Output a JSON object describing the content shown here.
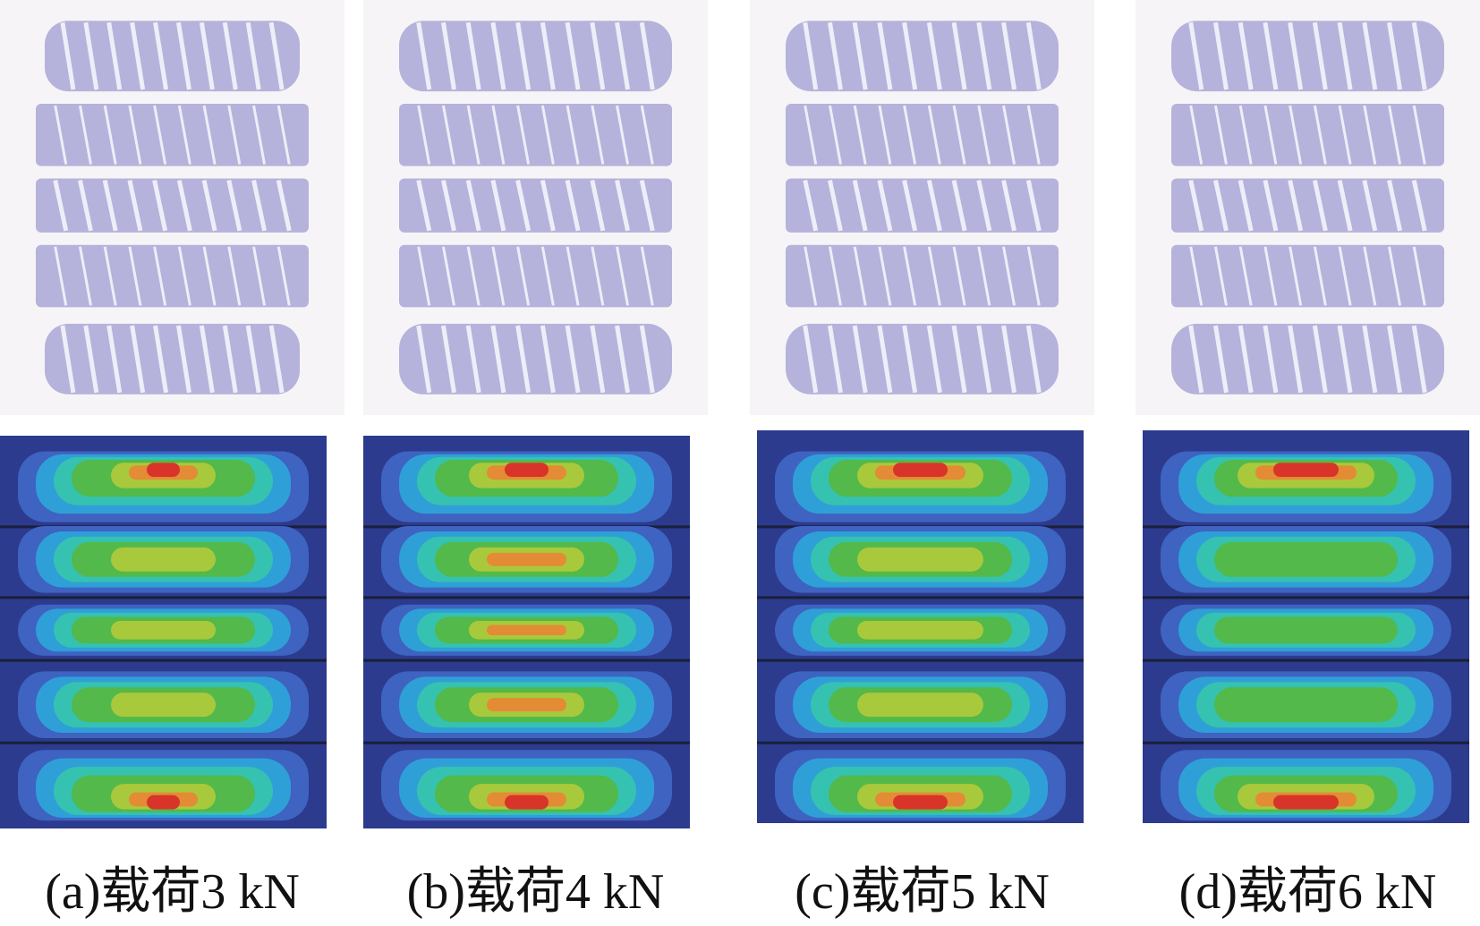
{
  "panels": [
    {
      "caption": "(a)载荷3 kN"
    },
    {
      "caption": "(b)载荷4 kN"
    },
    {
      "caption": "(c)载荷5 kN"
    },
    {
      "caption": "(d)载荷6 kN"
    }
  ]
}
